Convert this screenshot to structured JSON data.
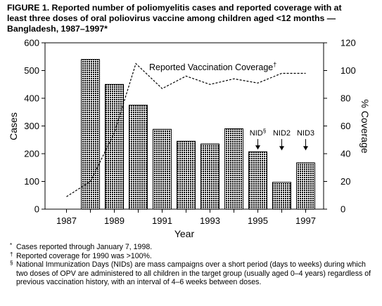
{
  "figure": {
    "title_lines": [
      "FIGURE 1. Reported number of poliomyelitis cases and reported coverage with at",
      "least three doses of oral poliovirus vaccine among children aged <12 months —",
      "Bangladesh, 1987–1997*"
    ]
  },
  "chart_data": {
    "type": "bar",
    "x": [
      1987,
      1988,
      1989,
      1990,
      1991,
      1992,
      1993,
      1994,
      1995,
      1996,
      1997
    ],
    "x_tick_labels": [
      "1987",
      "1989",
      "1991",
      "1993",
      "1995",
      "1997"
    ],
    "xlabel": "Year",
    "ylabel": "Cases",
    "ylim": [
      0,
      600
    ],
    "y_ticks": [
      0,
      100,
      200,
      300,
      400,
      500,
      600
    ],
    "y2label": "% Coverage",
    "y2lim": [
      0,
      120
    ],
    "y2_ticks": [
      0,
      20,
      40,
      60,
      80,
      100,
      120
    ],
    "series": [
      {
        "kind": "bar",
        "axis": "left",
        "values": [
          null,
          540,
          450,
          375,
          288,
          245,
          235,
          290,
          207,
          97,
          167
        ]
      },
      {
        "kind": "line",
        "axis": "right",
        "style": "dotted",
        "name": "Reported Vaccination Coverage",
        "name_marker": "†",
        "x": [
          1987,
          1988,
          1989,
          1989.9,
          1991,
          1992,
          1993,
          1994,
          1995,
          1996,
          1997
        ],
        "values": [
          9,
          20,
          55,
          105,
          87,
          96,
          90,
          94,
          91,
          98,
          98
        ]
      }
    ],
    "annotations": [
      {
        "text": "NID",
        "sup": "§",
        "year": 1995,
        "arrow_tip": 215,
        "arrow_base": 253
      },
      {
        "text": "NID2",
        "sup": "",
        "year": 1996,
        "arrow_tip": 212,
        "arrow_base": 253
      },
      {
        "text": "NID3",
        "sup": "",
        "year": 1997,
        "arrow_tip": 212,
        "arrow_base": 253
      }
    ],
    "colors": {
      "bar_pattern": "#000000",
      "bar_gap": "#ffffff"
    },
    "grid": false
  },
  "footnotes": [
    {
      "marker": "*",
      "text": "Cases reported through January 7, 1998."
    },
    {
      "marker": "†",
      "text": "Reported coverage for 1990 was >100%."
    },
    {
      "marker": "§",
      "text": "National Immunization Days (NIDs) are mass campaigns over a short period (days to weeks) during which two doses of OPV are administered to all children in the target group (usually aged 0–4 years) regardless of previous vaccination history, with an interval of 4–6 weeks between doses."
    }
  ]
}
